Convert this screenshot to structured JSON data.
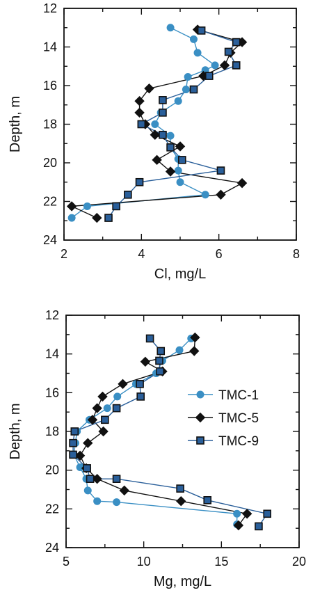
{
  "styles": {
    "TMC-1": {
      "color": "#3a8fc4",
      "marker": "circle"
    },
    "TMC-5": {
      "color": "#111111",
      "marker": "diamond"
    },
    "TMC-9": {
      "color": "#2a5f9a",
      "marker": "square"
    }
  },
  "chart_data": [
    {
      "type": "line",
      "xlabel": "Cl, mg/L",
      "ylabel": "Depth, m",
      "xlim": [
        2,
        8
      ],
      "ylim": [
        12,
        24
      ],
      "y_inverted": true,
      "xticks": [
        2,
        4,
        6,
        8
      ],
      "yticks": [
        12,
        14,
        16,
        18,
        20,
        22,
        24
      ],
      "legend": false,
      "series": [
        {
          "name": "TMC-1",
          "points": [
            [
              4.75,
              13.0
            ],
            [
              5.35,
              13.6
            ],
            [
              5.45,
              14.3
            ],
            [
              5.9,
              14.95
            ],
            [
              5.65,
              15.2
            ],
            [
              5.2,
              15.55
            ],
            [
              5.15,
              16.2
            ],
            [
              4.95,
              16.8
            ],
            [
              4.5,
              17.4
            ],
            [
              4.35,
              18.0
            ],
            [
              4.75,
              18.6
            ],
            [
              4.75,
              19.2
            ],
            [
              4.95,
              19.8
            ],
            [
              4.95,
              20.4
            ],
            [
              5.0,
              21.0
            ],
            [
              5.65,
              21.65
            ],
            [
              2.6,
              22.25
            ],
            [
              2.2,
              22.85
            ]
          ]
        },
        {
          "name": "TMC-5",
          "points": [
            [
              5.45,
              13.1
            ],
            [
              6.6,
              13.75
            ],
            [
              6.3,
              14.3
            ],
            [
              6.15,
              14.95
            ],
            [
              5.6,
              15.5
            ],
            [
              4.2,
              16.15
            ],
            [
              3.95,
              16.8
            ],
            [
              3.95,
              17.4
            ],
            [
              4.1,
              18.0
            ],
            [
              4.35,
              18.55
            ],
            [
              5.0,
              19.15
            ],
            [
              4.4,
              19.85
            ],
            [
              4.75,
              20.45
            ],
            [
              6.6,
              21.05
            ],
            [
              6.05,
              21.65
            ],
            [
              2.2,
              22.25
            ],
            [
              2.85,
              22.85
            ]
          ]
        },
        {
          "name": "TMC-9",
          "points": [
            [
              5.55,
              13.15
            ],
            [
              6.45,
              13.75
            ],
            [
              6.25,
              14.25
            ],
            [
              6.45,
              14.95
            ],
            [
              5.75,
              15.5
            ],
            [
              5.35,
              16.2
            ],
            [
              4.55,
              16.75
            ],
            [
              4.55,
              17.4
            ],
            [
              4.0,
              18.0
            ],
            [
              4.55,
              18.55
            ],
            [
              4.75,
              19.2
            ],
            [
              5.05,
              19.85
            ],
            [
              6.05,
              20.4
            ],
            [
              3.95,
              21.0
            ],
            [
              3.65,
              21.65
            ],
            [
              3.35,
              22.25
            ],
            [
              3.15,
              22.85
            ]
          ]
        }
      ]
    },
    {
      "type": "line",
      "xlabel": "Mg, mg/L",
      "ylabel": "Depth, m",
      "xlim": [
        5,
        20
      ],
      "ylim": [
        12,
        24
      ],
      "y_inverted": true,
      "xticks": [
        5,
        10,
        15,
        20
      ],
      "yticks": [
        12,
        14,
        16,
        18,
        20,
        22,
        24
      ],
      "legend": true,
      "legend_position": "right",
      "series": [
        {
          "name": "TMC-1",
          "points": [
            [
              13.05,
              13.2
            ],
            [
              12.3,
              13.8
            ],
            [
              11.2,
              14.35
            ],
            [
              10.8,
              15.0
            ],
            [
              9.5,
              15.55
            ],
            [
              8.3,
              16.2
            ],
            [
              7.65,
              16.8
            ],
            [
              6.5,
              17.4
            ],
            [
              5.7,
              18.0
            ],
            [
              5.6,
              18.6
            ],
            [
              5.5,
              19.2
            ],
            [
              5.9,
              19.85
            ],
            [
              6.3,
              20.45
            ],
            [
              6.4,
              21.05
            ],
            [
              7.0,
              21.6
            ],
            [
              8.25,
              21.65
            ],
            [
              16.0,
              22.25
            ],
            [
              16.0,
              22.8
            ]
          ]
        },
        {
          "name": "TMC-5",
          "points": [
            [
              13.3,
              13.15
            ],
            [
              13.25,
              13.85
            ],
            [
              10.1,
              14.4
            ],
            [
              11.2,
              14.9
            ],
            [
              8.65,
              15.55
            ],
            [
              7.35,
              16.2
            ],
            [
              7.0,
              16.8
            ],
            [
              6.7,
              17.4
            ],
            [
              7.4,
              18.0
            ],
            [
              6.4,
              18.6
            ],
            [
              5.9,
              19.25
            ],
            [
              6.3,
              19.9
            ],
            [
              7.0,
              20.45
            ],
            [
              8.75,
              21.05
            ],
            [
              12.4,
              21.6
            ],
            [
              16.65,
              22.25
            ],
            [
              16.1,
              22.85
            ]
          ]
        },
        {
          "name": "TMC-9",
          "points": [
            [
              10.4,
              13.2
            ],
            [
              11.1,
              13.85
            ],
            [
              11.0,
              14.35
            ],
            [
              11.05,
              14.9
            ],
            [
              9.75,
              15.55
            ],
            [
              9.8,
              16.2
            ],
            [
              8.25,
              16.8
            ],
            [
              7.5,
              17.4
            ],
            [
              5.55,
              18.0
            ],
            [
              5.45,
              18.6
            ],
            [
              5.45,
              19.2
            ],
            [
              6.35,
              19.9
            ],
            [
              6.55,
              20.45
            ],
            [
              8.25,
              20.45
            ],
            [
              12.35,
              20.95
            ],
            [
              14.1,
              21.55
            ],
            [
              17.95,
              22.25
            ],
            [
              17.4,
              22.9
            ]
          ]
        }
      ]
    }
  ]
}
